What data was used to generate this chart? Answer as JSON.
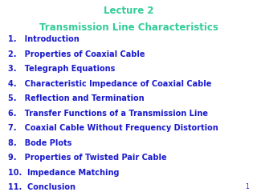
{
  "title_line1": "Lecture 2",
  "title_line2": "Transmission Line Characteristics",
  "title_color": "#33CC99",
  "items_color": "#1A1ACD",
  "background_color": "#FFFFFF",
  "items": [
    "1.   Introduction",
    "2.   Properties of Coaxial Cable",
    "3.   Telegraph Equations",
    "4.   Characteristic Impedance of Coaxial Cable",
    "5.   Reflection and Termination",
    "6.   Transfer Functions of a Transmission Line",
    "7.   Coaxial Cable Without Frequency Distortion",
    "8.   Bode Plots",
    "9.   Properties of Twisted Pair Cable",
    "10.  Impedance Matching",
    "11.  Conclusion"
  ],
  "page_number": "1",
  "title_fontsize": 8.5,
  "items_fontsize": 7.0,
  "page_num_fontsize": 5.5
}
